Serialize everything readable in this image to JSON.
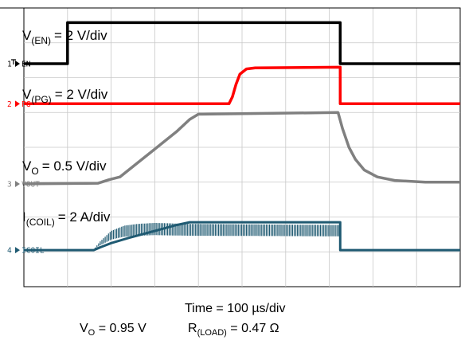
{
  "chart_data": {
    "type": "line",
    "title": "",
    "grid": true,
    "xlabel": "Time = 100 µs/div",
    "x_divisions": 10,
    "y_divisions": 8,
    "x_units": "div",
    "channels": [
      {
        "id": "EN",
        "marker": "1",
        "label": "EN",
        "color": "#000000",
        "scale_text": "= 2 V/div",
        "scale_var": "V",
        "scale_sub": "(EN)",
        "baseline_div": 6.4,
        "points": [
          [
            0,
            0
          ],
          [
            1.0,
            0
          ],
          [
            1.0,
            1.18
          ],
          [
            7.25,
            1.18
          ],
          [
            7.25,
            0
          ],
          [
            10,
            0
          ]
        ]
      },
      {
        "id": "PG",
        "marker": "2",
        "label": "PG",
        "color": "#ff0000",
        "scale_text": "= 2 V/div",
        "scale_var": "V",
        "scale_sub": "(PG)",
        "baseline_div": 5.25,
        "points": [
          [
            0,
            0
          ],
          [
            4.7,
            0
          ],
          [
            4.78,
            0.2
          ],
          [
            4.86,
            0.55
          ],
          [
            4.95,
            0.85
          ],
          [
            5.1,
            1.0
          ],
          [
            5.3,
            1.03
          ],
          [
            7.25,
            1.05
          ],
          [
            7.25,
            0
          ],
          [
            10,
            0
          ]
        ]
      },
      {
        "id": "VOUT",
        "marker": "3",
        "label": "VOUT",
        "color": "#808080",
        "scale_text": "= 0.5 V/div",
        "scale_var": "V",
        "scale_sub": "O",
        "baseline_div": 2.95,
        "points": [
          [
            0,
            0
          ],
          [
            1.7,
            0.02
          ],
          [
            1.95,
            0.12
          ],
          [
            2.2,
            0.2
          ],
          [
            2.5,
            0.5
          ],
          [
            3.0,
            1.0
          ],
          [
            3.5,
            1.5
          ],
          [
            3.8,
            1.85
          ],
          [
            4.0,
            2.0
          ],
          [
            7.2,
            2.05
          ],
          [
            7.3,
            1.6
          ],
          [
            7.45,
            1.05
          ],
          [
            7.6,
            0.7
          ],
          [
            7.8,
            0.4
          ],
          [
            8.1,
            0.2
          ],
          [
            8.5,
            0.1
          ],
          [
            9.2,
            0.05
          ],
          [
            10,
            0.05
          ]
        ]
      },
      {
        "id": "ICOIL",
        "marker": "4",
        "label": "ICOIL",
        "color": "#1f5a72",
        "scale_text": "= 2 A/div",
        "scale_var": "I",
        "scale_sub": "(COIL)",
        "baseline_div": 1.05,
        "points": [
          [
            0,
            0
          ],
          [
            1.6,
            0
          ],
          [
            1.75,
            0.08
          ],
          [
            2.0,
            0.2
          ],
          [
            2.4,
            0.35
          ],
          [
            3.0,
            0.55
          ],
          [
            3.5,
            0.72
          ],
          [
            3.8,
            0.8
          ],
          [
            7.25,
            0.8
          ],
          [
            7.25,
            0
          ],
          [
            10,
            0
          ]
        ],
        "ripple": [
          [
            1.6,
            0.02
          ],
          [
            1.75,
            0.25
          ],
          [
            2.0,
            0.55
          ],
          [
            2.3,
            0.7
          ],
          [
            2.6,
            0.75
          ],
          [
            3.0,
            0.78
          ],
          [
            3.8,
            0.75
          ],
          [
            7.25,
            0.72
          ]
        ]
      }
    ],
    "conditions": {
      "vo": {
        "var": "V",
        "sub": "O",
        "value": "= 0.95 V"
      },
      "rload": {
        "var": "R",
        "sub": "(LOAD)",
        "value": "= 0.47 Ω"
      }
    }
  }
}
